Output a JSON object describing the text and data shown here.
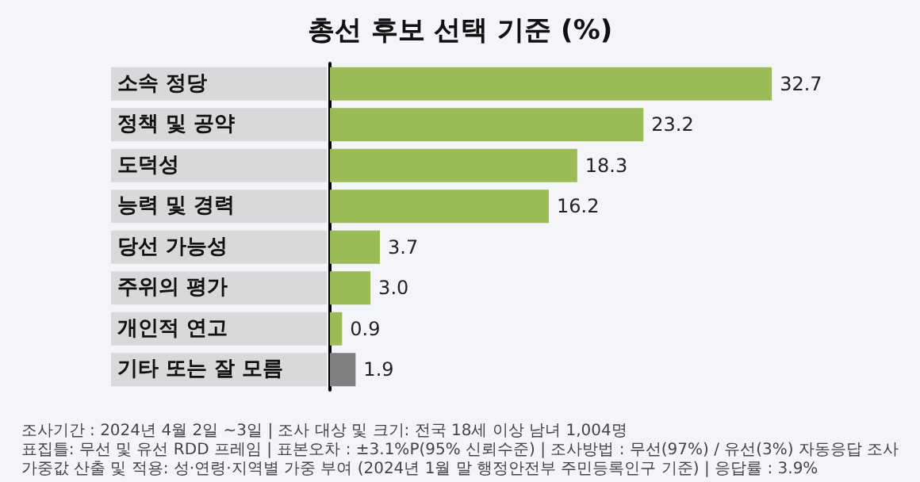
{
  "chart_data": {
    "type": "bar",
    "orientation": "horizontal",
    "title": "총선 후보 선택 기준 (%)",
    "categories": [
      "소속 정당",
      "정책 및 공약",
      "도덕성",
      "능력 및 경력",
      "당선 가능성",
      "주위의 평가",
      "개인적 연고",
      "기타 또는 잘 모름"
    ],
    "values": [
      32.7,
      23.2,
      18.3,
      16.2,
      3.7,
      3.0,
      0.9,
      1.9
    ],
    "colors": [
      "#9bbb59",
      "#9bbb59",
      "#9bbb59",
      "#9bbb59",
      "#9bbb59",
      "#9bbb59",
      "#9bbb59",
      "#808080"
    ],
    "value_labels": [
      "32.7",
      "23.2",
      "18.3",
      "16.2",
      "3.7",
      "3.0",
      "0.9",
      "1.9"
    ],
    "annotations": [
      "조사기간 : 2024년 4월 2일 ~3일 | 조사 대상 및 크기: 전국 18세 이상 남녀 1,004명",
      "표집틀: 무선 및 유선 RDD 프레임 | 표본오차 : ±3.1%P(95% 신뢰수준) | 조사방법 : 무선(97%) / 유선(3%) 자동응답 조사",
      "가중값 산출 및 적용: 성·연령·지역별 가중 부여 (2024년 1월 말 행정안전부 주민등록인구 기준) | 응답률 : 3.9%"
    ]
  }
}
